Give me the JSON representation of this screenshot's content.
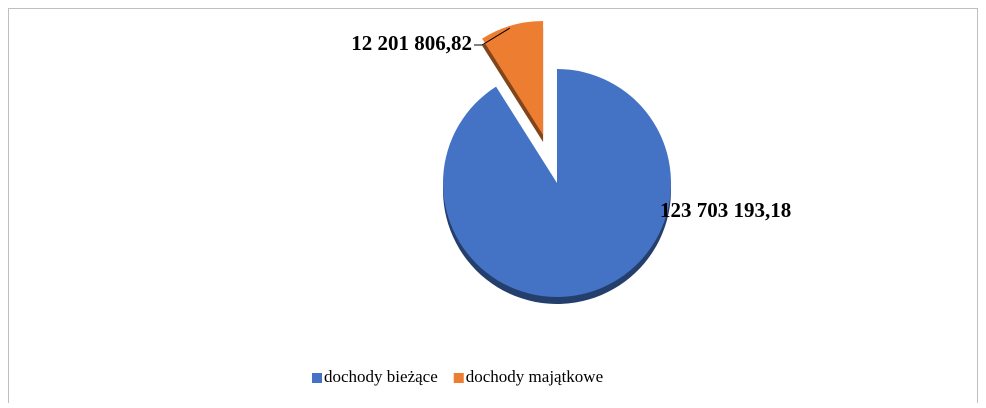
{
  "chart_data": {
    "type": "pie",
    "categories": [
      "dochody bieżące",
      "dochody majątkowe"
    ],
    "values": [
      123703193.18,
      12201806.82
    ],
    "value_labels": [
      "123 703 193,18",
      "12 201 806,82"
    ],
    "colors": [
      "#4472c4",
      "#ed7d31"
    ],
    "legend": "bottom"
  }
}
